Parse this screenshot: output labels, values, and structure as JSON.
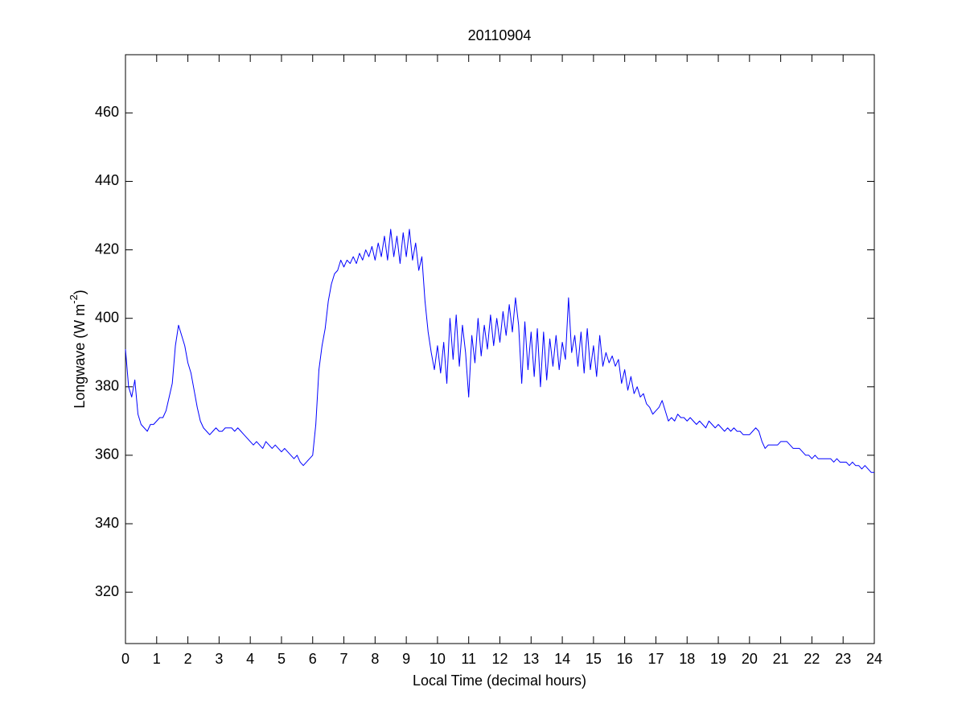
{
  "chart_data": {
    "type": "line",
    "title": "20110904",
    "xlabel": "Local Time (decimal hours)",
    "ylabel": {
      "text": "Longwave (W m",
      "superscript": "-2",
      "suffix": ")"
    },
    "x": [
      0,
      0.1,
      0.2,
      0.3,
      0.4,
      0.5,
      0.6,
      0.7,
      0.8,
      0.9,
      1,
      1.1,
      1.2,
      1.3,
      1.4,
      1.5,
      1.6,
      1.7,
      1.8,
      1.9,
      2,
      2.1,
      2.2,
      2.3,
      2.4,
      2.5,
      2.6,
      2.7,
      2.8,
      2.9,
      3,
      3.1,
      3.2,
      3.3,
      3.4,
      3.5,
      3.6,
      3.7,
      3.8,
      3.9,
      4,
      4.1,
      4.2,
      4.3,
      4.4,
      4.5,
      4.6,
      4.7,
      4.8,
      4.9,
      5,
      5.1,
      5.2,
      5.3,
      5.4,
      5.5,
      5.6,
      5.7,
      5.8,
      5.9,
      6,
      6.1,
      6.2,
      6.3,
      6.4,
      6.5,
      6.6,
      6.7,
      6.8,
      6.9,
      7,
      7.1,
      7.2,
      7.3,
      7.4,
      7.5,
      7.6,
      7.7,
      7.8,
      7.9,
      8,
      8.1,
      8.2,
      8.3,
      8.4,
      8.5,
      8.6,
      8.7,
      8.8,
      8.9,
      9,
      9.1,
      9.2,
      9.3,
      9.4,
      9.5,
      9.6,
      9.7,
      9.8,
      9.9,
      10,
      10.1,
      10.2,
      10.3,
      10.4,
      10.5,
      10.6,
      10.7,
      10.8,
      10.9,
      11,
      11.1,
      11.2,
      11.3,
      11.4,
      11.5,
      11.6,
      11.7,
      11.8,
      11.9,
      12,
      12.1,
      12.2,
      12.3,
      12.4,
      12.5,
      12.6,
      12.7,
      12.8,
      12.9,
      13,
      13.1,
      13.2,
      13.3,
      13.4,
      13.5,
      13.6,
      13.7,
      13.8,
      13.9,
      14,
      14.1,
      14.2,
      14.3,
      14.4,
      14.5,
      14.6,
      14.7,
      14.8,
      14.9,
      15,
      15.1,
      15.2,
      15.3,
      15.4,
      15.5,
      15.6,
      15.7,
      15.8,
      15.9,
      16,
      16.1,
      16.2,
      16.3,
      16.4,
      16.5,
      16.6,
      16.7,
      16.8,
      16.9,
      17,
      17.1,
      17.2,
      17.3,
      17.4,
      17.5,
      17.6,
      17.7,
      17.8,
      17.9,
      18,
      18.1,
      18.2,
      18.3,
      18.4,
      18.5,
      18.6,
      18.7,
      18.8,
      18.9,
      19,
      19.1,
      19.2,
      19.3,
      19.4,
      19.5,
      19.6,
      19.7,
      19.8,
      19.9,
      20,
      20.1,
      20.2,
      20.3,
      20.4,
      20.5,
      20.6,
      20.7,
      20.8,
      20.9,
      21,
      21.1,
      21.2,
      21.3,
      21.4,
      21.5,
      21.6,
      21.7,
      21.8,
      21.9,
      22,
      22.1,
      22.2,
      22.3,
      22.4,
      22.5,
      22.6,
      22.7,
      22.8,
      22.9,
      23,
      23.1,
      23.2,
      23.3,
      23.4,
      23.5,
      23.6,
      23.7,
      23.8,
      23.9,
      24
    ],
    "series": [
      {
        "name": "Longwave",
        "color": "#0000ff",
        "values": [
          391,
          380,
          377,
          382,
          372,
          369,
          368,
          367,
          369,
          369,
          370,
          371,
          371,
          373,
          377,
          381,
          392,
          398,
          395,
          392,
          387,
          384,
          379,
          374,
          370,
          368,
          367,
          366,
          367,
          368,
          367,
          367,
          368,
          368,
          368,
          367,
          368,
          367,
          366,
          365,
          364,
          363,
          364,
          363,
          362,
          364,
          363,
          362,
          363,
          362,
          361,
          362,
          361,
          360,
          359,
          360,
          358,
          357,
          358,
          359,
          360,
          369,
          385,
          392,
          397,
          405,
          410,
          413,
          414,
          417,
          415,
          417,
          416,
          418,
          416,
          419,
          417,
          420,
          418,
          421,
          417,
          422,
          418,
          424,
          417,
          426,
          418,
          424,
          416,
          425,
          418,
          426,
          417,
          422,
          414,
          418,
          405,
          396,
          390,
          385,
          392,
          384,
          393,
          381,
          400,
          388,
          401,
          386,
          398,
          390,
          377,
          395,
          387,
          400,
          389,
          398,
          391,
          401,
          392,
          400,
          393,
          402,
          395,
          404,
          396,
          406,
          398,
          381,
          399,
          385,
          396,
          383,
          397,
          380,
          396,
          382,
          394,
          386,
          395,
          385,
          393,
          388,
          406,
          390,
          395,
          386,
          396,
          384,
          397,
          385,
          392,
          383,
          395,
          386,
          390,
          387,
          389,
          386,
          388,
          381,
          385,
          379,
          383,
          378,
          380,
          377,
          378,
          375,
          374,
          372,
          373,
          374,
          376,
          373,
          370,
          371,
          370,
          372,
          371,
          371,
          370,
          371,
          370,
          369,
          370,
          369,
          368,
          370,
          369,
          368,
          369,
          368,
          367,
          368,
          367,
          368,
          367,
          367,
          366,
          366,
          366,
          367,
          368,
          367,
          364,
          362,
          363,
          363,
          363,
          363,
          364,
          364,
          364,
          363,
          362,
          362,
          362,
          361,
          360,
          360,
          359,
          360,
          359,
          359,
          359,
          359,
          359,
          358,
          359,
          358,
          358,
          358,
          357,
          358,
          357,
          357,
          356,
          357,
          356,
          355,
          355
        ]
      }
    ],
    "xlim": [
      0,
      24
    ],
    "xticks": [
      0,
      1,
      2,
      3,
      4,
      5,
      6,
      7,
      8,
      9,
      10,
      11,
      12,
      13,
      14,
      15,
      16,
      17,
      18,
      19,
      20,
      21,
      22,
      23,
      24
    ],
    "ylim": [
      305,
      477
    ],
    "yticks": [
      320,
      340,
      360,
      380,
      400,
      420,
      440,
      460
    ],
    "grid": false
  }
}
